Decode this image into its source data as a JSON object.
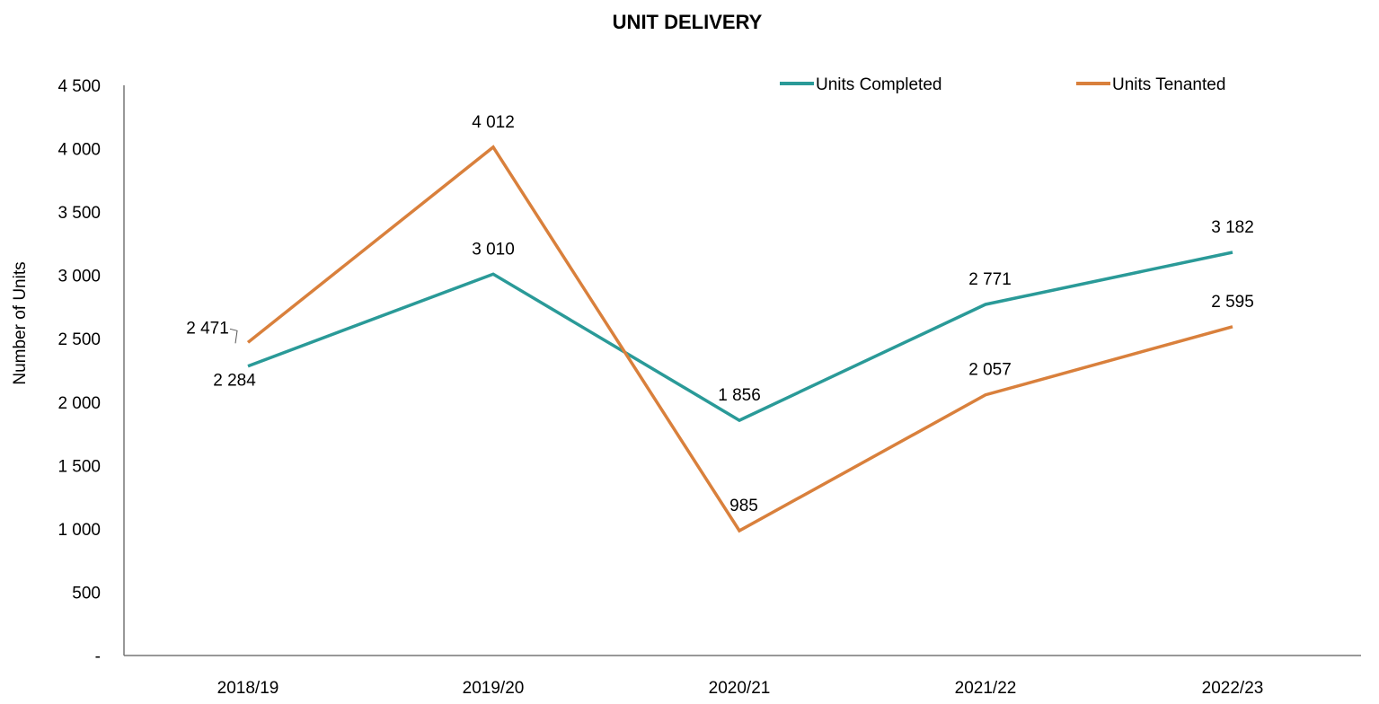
{
  "chart_data": {
    "type": "line",
    "title": "UNIT DELIVERY",
    "xlabel": "",
    "ylabel": "Number of Units",
    "categories": [
      "2018/19",
      "2019/20",
      "2020/21",
      "2021/22",
      "2022/23"
    ],
    "ylim": [
      0,
      4500
    ],
    "yticks": [
      0,
      500,
      1000,
      1500,
      2000,
      2500,
      3000,
      3500,
      4000,
      4500
    ],
    "ytick_labels": [
      "-",
      "500",
      "1 000",
      "1 500",
      "2 000",
      "2 500",
      "3 000",
      "3 500",
      "4 000",
      "4 500"
    ],
    "grid": false,
    "legend_position": "top-right",
    "series": [
      {
        "name": "Units Completed",
        "color": "#2a9a98",
        "values": [
          2284,
          3010,
          1856,
          2771,
          3182
        ],
        "labels": [
          "2 284",
          "3 010",
          "1 856",
          "2 771",
          "3 182"
        ]
      },
      {
        "name": "Units Tenanted",
        "color": "#d9803c",
        "values": [
          2471,
          4012,
          985,
          2057,
          2595
        ],
        "labels": [
          "2 471",
          "4 012",
          "985",
          "2 057",
          "2 595"
        ]
      }
    ]
  }
}
